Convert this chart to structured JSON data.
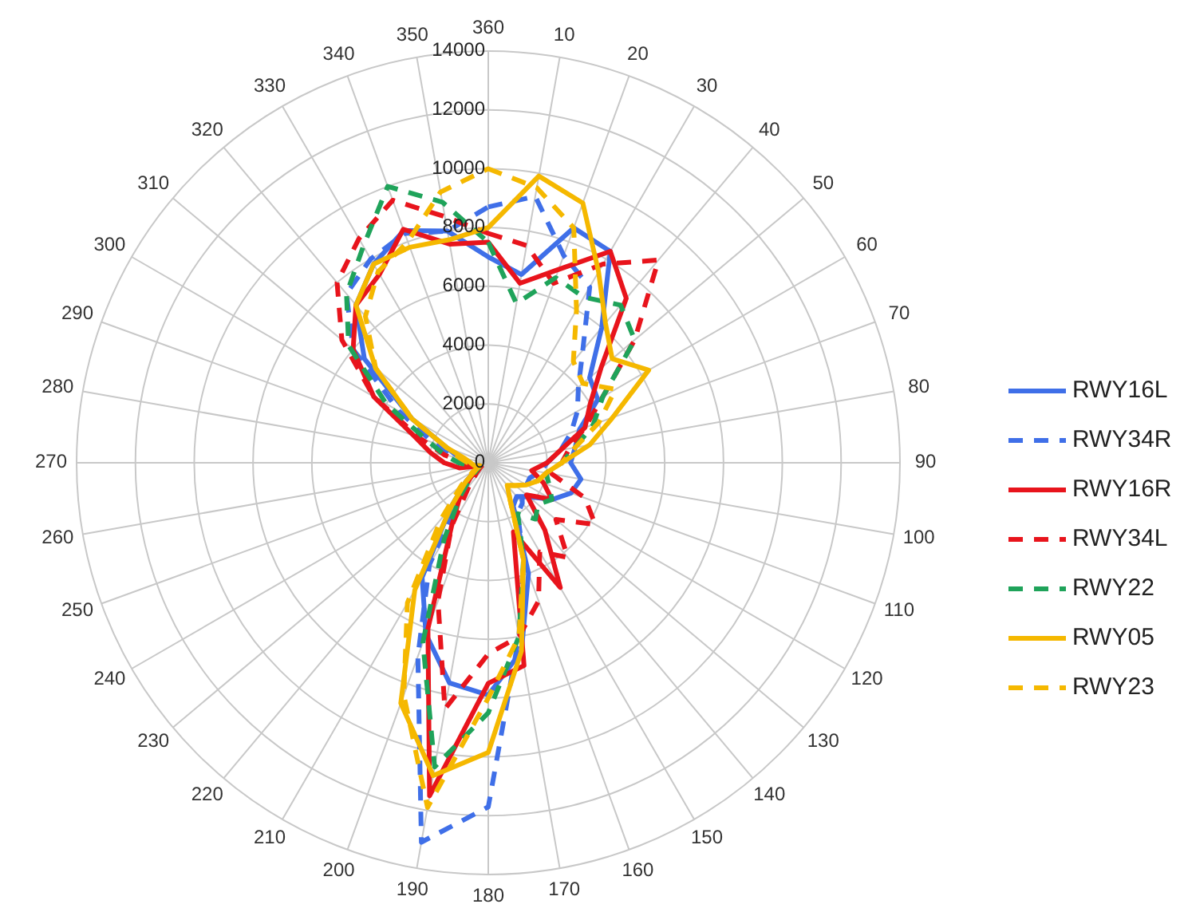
{
  "chart_data": {
    "type": "radar",
    "categories": [
      "360",
      "10",
      "20",
      "30",
      "40",
      "50",
      "60",
      "70",
      "80",
      "90",
      "100",
      "110",
      "120",
      "130",
      "140",
      "150",
      "160",
      "170",
      "180",
      "190",
      "200",
      "210",
      "220",
      "230",
      "240",
      "250",
      "260",
      "270",
      "280",
      "290",
      "300",
      "310",
      "320",
      "330",
      "340",
      "350"
    ],
    "ylim": [
      0,
      14000
    ],
    "yticks": [
      0,
      2000,
      4000,
      6000,
      8000,
      10000,
      12000,
      14000
    ],
    "grid": true,
    "legend": "right",
    "series": [
      {
        "name": "RWY16L",
        "color": "#3f6fe8",
        "line_style": "solid",
        "values": [
          7000,
          6500,
          8500,
          8300,
          6000,
          4500,
          4300,
          3300,
          3000,
          2800,
          3200,
          3000,
          2500,
          1800,
          1500,
          1700,
          4000,
          6500,
          7900,
          7600,
          6200,
          4500,
          2000,
          1000,
          500,
          300,
          700,
          800,
          1000,
          1500,
          3000,
          5500,
          7000,
          7800,
          8400,
          8000
        ]
      },
      {
        "name": "RWY34R",
        "color": "#3f6fe8",
        "line_style": "dashed",
        "values": [
          8700,
          9200,
          7500,
          6900,
          5000,
          4000,
          3500,
          3000,
          2500,
          2000,
          1800,
          1500,
          1500,
          1500,
          1800,
          2000,
          3500,
          6000,
          11700,
          13100,
          7000,
          4000,
          1500,
          800,
          400,
          300,
          500,
          800,
          1200,
          2000,
          3500,
          6000,
          7500,
          8000,
          8300,
          8000
        ]
      },
      {
        "name": "RWY16R",
        "color": "#e8141c",
        "line_style": "solid",
        "values": [
          7500,
          6200,
          7000,
          8300,
          7300,
          5000,
          4000,
          3500,
          2500,
          2000,
          1500,
          2000,
          2500,
          1700,
          3000,
          4900,
          2500,
          7000,
          7500,
          11500,
          6000,
          2500,
          1500,
          800,
          500,
          300,
          1000,
          1500,
          2000,
          2700,
          4500,
          6000,
          7000,
          7400,
          8450,
          7550
        ]
      },
      {
        "name": "RWY34L",
        "color": "#e8141c",
        "line_style": "dashed",
        "values": [
          7800,
          7500,
          6500,
          7800,
          9000,
          6500,
          4500,
          3500,
          2800,
          2500,
          2200,
          3500,
          4200,
          3000,
          4200,
          3500,
          5000,
          6000,
          6500,
          8500,
          5000,
          2500,
          1000,
          500,
          300,
          200,
          500,
          800,
          1500,
          2500,
          4500,
          6500,
          8000,
          8800,
          9500,
          8500
        ]
      },
      {
        "name": "RWY22",
        "color": "#1fa35a",
        "line_style": "dashed",
        "values": [
          7500,
          5500,
          6700,
          6500,
          7000,
          6500,
          4500,
          3800,
          3000,
          2500,
          2000,
          2200,
          2500,
          2200,
          2500,
          2000,
          3500,
          6000,
          8500,
          10500,
          6500,
          3000,
          1500,
          800,
          400,
          300,
          600,
          1000,
          1500,
          2200,
          4000,
          6200,
          7500,
          8500,
          10000,
          9000
        ]
      },
      {
        "name": "RWY05",
        "color": "#f5b800",
        "line_style": "solid",
        "values": [
          8000,
          9900,
          9400,
          7500,
          6200,
          5500,
          6300,
          4500,
          3500,
          2500,
          2000,
          1800,
          1500,
          1200,
          1000,
          1500,
          3500,
          6500,
          9850,
          10800,
          8700,
          5000,
          2000,
          1000,
          500,
          300,
          500,
          600,
          800,
          1500,
          3000,
          5000,
          7000,
          7800,
          7800,
          7700
        ]
      },
      {
        "name": "RWY23",
        "color": "#f5b800",
        "line_style": "dashed",
        "values": [
          10000,
          9500,
          8500,
          6000,
          4500,
          4200,
          5000,
          4000,
          3000,
          2500,
          2000,
          1800,
          1500,
          1200,
          1000,
          1500,
          3500,
          6000,
          8000,
          11900,
          8400,
          5500,
          2500,
          1200,
          600,
          300,
          500,
          700,
          1000,
          1500,
          3000,
          5000,
          6500,
          7500,
          8000,
          9350
        ]
      }
    ]
  }
}
